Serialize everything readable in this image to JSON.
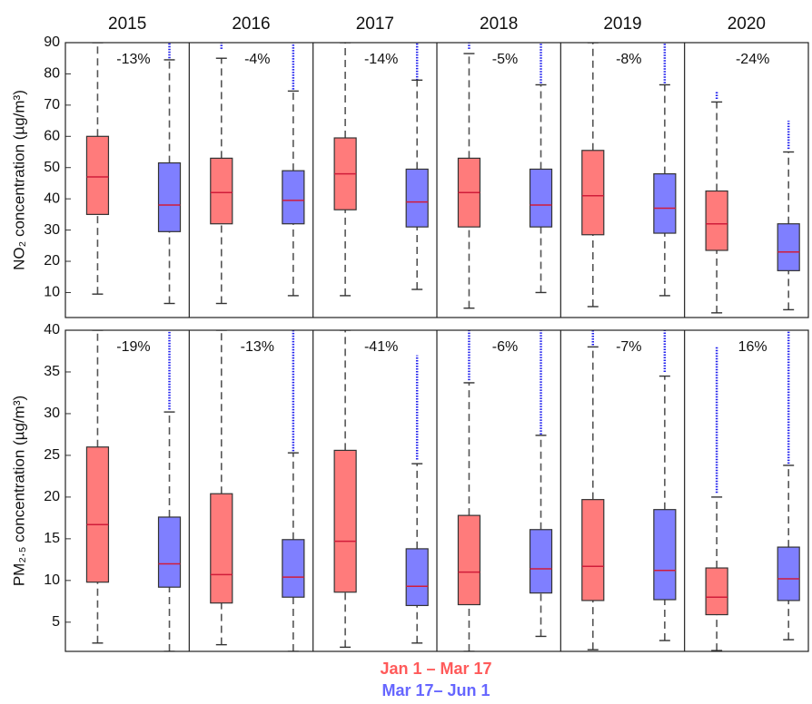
{
  "chart_data": {
    "type": "box",
    "categories": [
      "2015",
      "2016",
      "2017",
      "2018",
      "2019",
      "2020"
    ],
    "series": [
      {
        "name": "Jan 1 – Mar 17",
        "color": "#ff7b7b"
      },
      {
        "name": "Mar 17– Jun 1",
        "color": "#7f7fff"
      }
    ],
    "panels": [
      {
        "ylabel": "NO₂ concentration (µg/m³)",
        "ylim": [
          2,
          90
        ],
        "yticks": [
          10,
          20,
          30,
          40,
          50,
          60,
          70,
          80,
          90
        ],
        "annotations": [
          "-13%",
          "-4%",
          "-14%",
          "-5%",
          "-8%",
          "-24%"
        ],
        "series": [
          {
            "values": [
              {
                "min": 9.5,
                "q1": 35,
                "median": 47,
                "q3": 60,
                "max": 90
              },
              {
                "min": 6.5,
                "q1": 32,
                "median": 42,
                "q3": 53,
                "max": 85,
                "outliers": [
                  88,
                  90
                ]
              },
              {
                "min": 9,
                "q1": 36.5,
                "median": 48,
                "q3": 59.5,
                "max": 90
              },
              {
                "min": 5,
                "q1": 31,
                "median": 42,
                "q3": 53,
                "max": 86.5,
                "outliers": [
                  88,
                  90
                ]
              },
              {
                "min": 5.5,
                "q1": 28.5,
                "median": 41,
                "q3": 55.5,
                "max": 90
              },
              {
                "min": 3.5,
                "q1": 23.5,
                "median": 32,
                "q3": 42.5,
                "max": 71,
                "outliers": [
                  72,
                  74.5
                ]
              }
            ]
          },
          {
            "values": [
              {
                "min": 6.5,
                "q1": 29.5,
                "median": 38,
                "q3": 51.5,
                "max": 84.5,
                "outliers": [
                  85,
                  90
                ]
              },
              {
                "min": 9,
                "q1": 32,
                "median": 39.5,
                "q3": 49,
                "max": 74.5,
                "outliers": [
                  75,
                  90
                ]
              },
              {
                "min": 11,
                "q1": 31,
                "median": 39,
                "q3": 49.5,
                "max": 78,
                "outliers": [
                  78,
                  90
                ]
              },
              {
                "min": 10,
                "q1": 31,
                "median": 38,
                "q3": 49.5,
                "max": 76.5,
                "outliers": [
                  77,
                  90
                ]
              },
              {
                "min": 9,
                "q1": 29,
                "median": 37,
                "q3": 48,
                "max": 76.5,
                "outliers": [
                  77,
                  90
                ]
              },
              {
                "min": 4.5,
                "q1": 17,
                "median": 23,
                "q3": 32,
                "max": 55,
                "outliers": [
                  56,
                  65
                ]
              }
            ]
          }
        ]
      },
      {
        "ylabel": "PM₂.₅ concentration (µg/m³)",
        "ylim": [
          1.5,
          40
        ],
        "yticks": [
          5,
          10,
          15,
          20,
          25,
          30,
          35,
          40
        ],
        "annotations": [
          "-19%",
          "-13%",
          "-41%",
          "-6%",
          "-7%",
          "16%"
        ],
        "series": [
          {
            "values": [
              {
                "min": 2.5,
                "q1": 9.8,
                "median": 16.7,
                "q3": 26,
                "max": 40
              },
              {
                "min": 2.3,
                "q1": 7.3,
                "median": 10.7,
                "q3": 20.4,
                "max": 40
              },
              {
                "min": 2,
                "q1": 8.6,
                "median": 14.7,
                "q3": 25.6,
                "max": 40
              },
              {
                "min": 1.5,
                "q1": 7.1,
                "median": 11,
                "q3": 17.8,
                "max": 33.7,
                "outliers": [
                  34,
                  40
                ]
              },
              {
                "min": 1.7,
                "q1": 7.6,
                "median": 11.7,
                "q3": 19.7,
                "max": 38,
                "outliers": [
                  38.2,
                  40
                ]
              },
              {
                "min": 1.6,
                "q1": 5.9,
                "median": 8,
                "q3": 11.5,
                "max": 20,
                "outliers": [
                  20.5,
                  38
                ]
              }
            ]
          },
          {
            "values": [
              {
                "min": 1.5,
                "q1": 9.2,
                "median": 12,
                "q3": 17.6,
                "max": 30.2,
                "outliers": [
                  30.5,
                  40
                ]
              },
              {
                "min": 1.5,
                "q1": 8,
                "median": 10.4,
                "q3": 14.9,
                "max": 25.3,
                "outliers": [
                  25.5,
                  40
                ]
              },
              {
                "min": 2.5,
                "q1": 7,
                "median": 9.3,
                "q3": 13.8,
                "max": 24,
                "outliers": [
                  24.5,
                  37
                ]
              },
              {
                "min": 3.3,
                "q1": 8.5,
                "median": 11.4,
                "q3": 16.1,
                "max": 27.4,
                "outliers": [
                  27.5,
                  40
                ]
              },
              {
                "min": 2.8,
                "q1": 7.7,
                "median": 11.2,
                "q3": 18.5,
                "max": 34.5,
                "outliers": [
                  35,
                  40
                ]
              },
              {
                "min": 2.9,
                "q1": 7.6,
                "median": 10.2,
                "q3": 14,
                "max": 23.8,
                "outliers": [
                  24,
                  40
                ]
              }
            ]
          }
        ]
      }
    ]
  }
}
